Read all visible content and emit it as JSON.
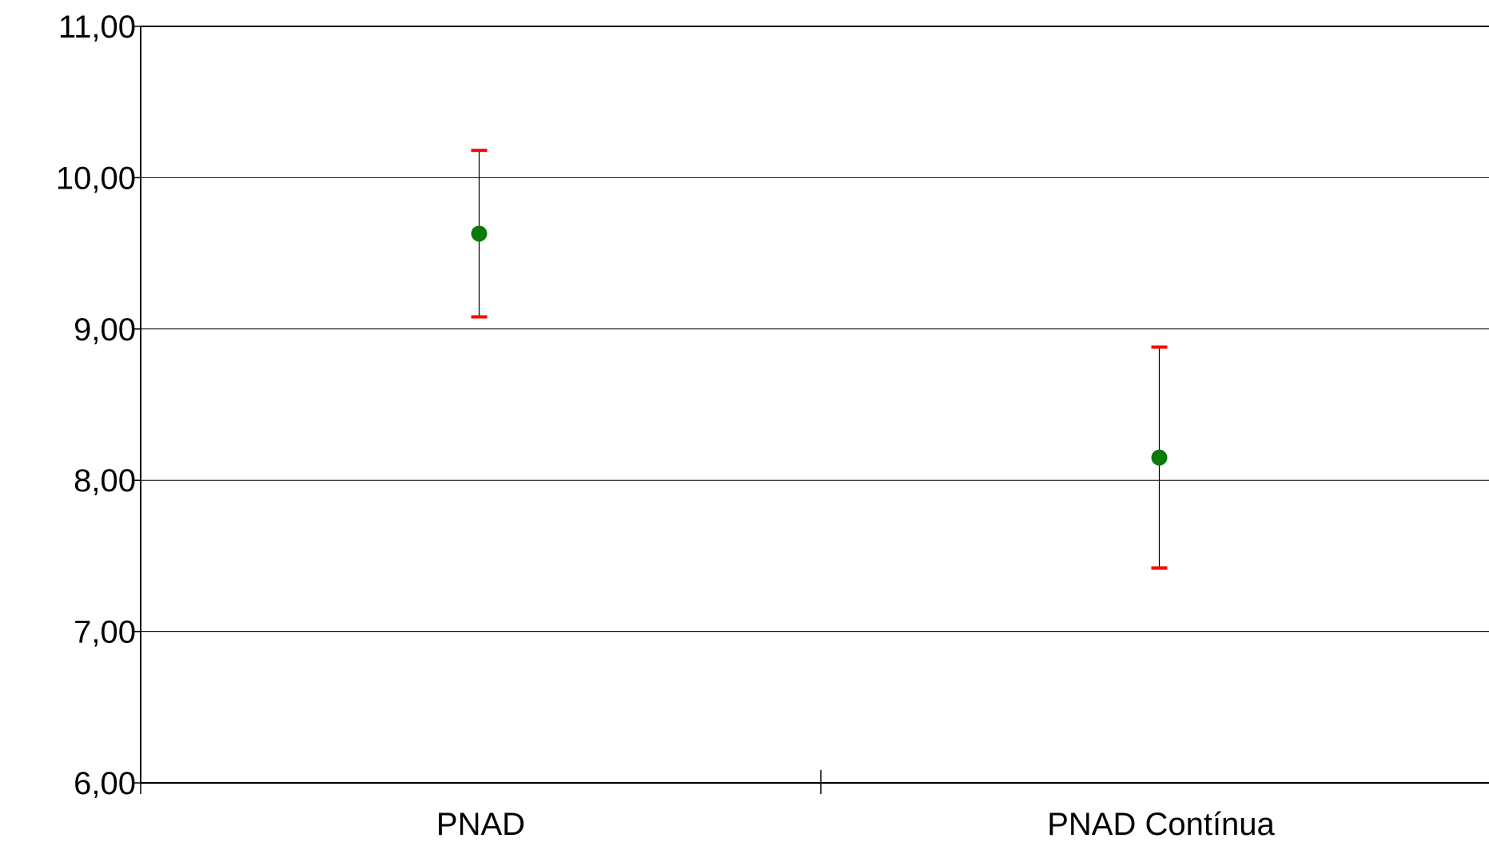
{
  "chart_data": {
    "type": "scatter",
    "title": "",
    "xlabel": "",
    "ylabel": "",
    "categories": [
      "PNAD",
      "PNAD Contínua"
    ],
    "series": [
      {
        "values": [
          9.63,
          8.15
        ],
        "lower": [
          9.08,
          7.42
        ],
        "upper": [
          10.18,
          8.88
        ]
      }
    ],
    "ylim": [
      6.0,
      11.0
    ],
    "y_ticks": [
      "6,00",
      "7,00",
      "8,00",
      "9,00",
      "10,00",
      "11,00"
    ],
    "y_tick_values": [
      6,
      7,
      8,
      9,
      10,
      11
    ],
    "grid": true,
    "legend": "none",
    "colors": {
      "point": "#0a7a0a",
      "error_cap": "#ff0000",
      "error_line": "#000000",
      "grid": "#000000",
      "axis": "#000000"
    }
  }
}
